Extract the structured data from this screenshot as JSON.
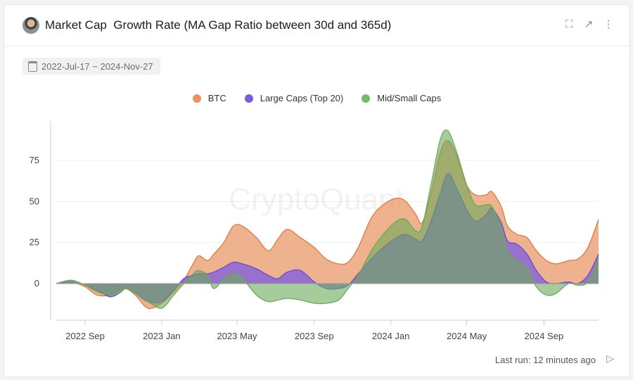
{
  "header": {
    "title": "Market Cap  Growth Rate (MA Gap Ratio between 30d and 365d)",
    "icons": [
      "fullscreen-icon",
      "external-link-icon",
      "more-vertical-icon"
    ]
  },
  "date_range": "2022-Jul-17 ~ 2024-Nov-27",
  "watermark": "CryptoQuant",
  "footer": {
    "last_run": "Last run: 12 minutes ago"
  },
  "colors": {
    "BTC": "#e8925f",
    "Large Caps (Top 20)": "#7b5be0",
    "Mid/Small Caps": "#79b866"
  },
  "chart_data": {
    "type": "area",
    "title": "",
    "xlabel": "",
    "ylabel": "",
    "ylim": [
      -20,
      100
    ],
    "yticks": [
      0,
      25,
      50,
      75
    ],
    "xticks": [
      {
        "date": "2022-09-01",
        "label": "2022 Sep"
      },
      {
        "date": "2023-01-01",
        "label": "2023 Jan"
      },
      {
        "date": "2023-05-01",
        "label": "2023 May"
      },
      {
        "date": "2023-09-01",
        "label": "2023 Sep"
      },
      {
        "date": "2024-01-01",
        "label": "2024 Jan"
      },
      {
        "date": "2024-05-01",
        "label": "2024 May"
      },
      {
        "date": "2024-09-01",
        "label": "2024 Sep"
      }
    ],
    "xlim": [
      "2022-07-17",
      "2024-11-27"
    ],
    "grid": true,
    "legend": "top-center",
    "x": [
      "2022-07-17",
      "2022-08-10",
      "2022-09-01",
      "2022-09-20",
      "2022-10-10",
      "2022-10-25",
      "2022-11-05",
      "2022-11-20",
      "2022-12-10",
      "2023-01-01",
      "2023-01-20",
      "2023-02-05",
      "2023-02-20",
      "2023-03-01",
      "2023-03-15",
      "2023-03-25",
      "2023-04-10",
      "2023-04-25",
      "2023-05-10",
      "2023-06-01",
      "2023-06-20",
      "2023-07-05",
      "2023-07-20",
      "2023-08-10",
      "2023-09-01",
      "2023-09-20",
      "2023-10-10",
      "2023-10-25",
      "2023-11-10",
      "2023-12-01",
      "2023-12-20",
      "2024-01-10",
      "2024-01-25",
      "2024-02-10",
      "2024-02-20",
      "2024-03-05",
      "2024-03-20",
      "2024-04-01",
      "2024-04-15",
      "2024-05-01",
      "2024-05-15",
      "2024-06-01",
      "2024-06-10",
      "2024-06-25",
      "2024-07-05",
      "2024-07-20",
      "2024-08-05",
      "2024-08-20",
      "2024-09-05",
      "2024-09-20",
      "2024-10-10",
      "2024-10-25",
      "2024-11-10",
      "2024-11-27"
    ],
    "series": [
      {
        "name": "BTC",
        "values": [
          0,
          1,
          -2,
          -7,
          -7,
          -4,
          -3,
          -7,
          -15,
          -12,
          -5,
          2,
          12,
          17,
          14,
          18,
          25,
          35,
          35,
          28,
          20,
          27,
          33,
          28,
          22,
          15,
          12,
          13,
          22,
          40,
          48,
          52,
          50,
          42,
          37,
          55,
          80,
          87,
          78,
          60,
          54,
          54,
          56,
          47,
          35,
          30,
          28,
          20,
          14,
          12,
          14,
          15,
          22,
          39
        ]
      },
      {
        "name": "Large Caps (Top 20)",
        "values": [
          0,
          2,
          -1,
          -4,
          -8,
          -6,
          -3,
          -6,
          -11,
          -11,
          -4,
          3,
          5,
          6,
          6,
          7,
          10,
          13,
          12,
          9,
          5,
          3,
          7,
          8,
          1,
          -3,
          -3,
          -1,
          6,
          15,
          22,
          28,
          30,
          27,
          26,
          38,
          55,
          67,
          58,
          45,
          38,
          42,
          46,
          37,
          26,
          24,
          18,
          8,
          1,
          0,
          1,
          0,
          5,
          18
        ]
      },
      {
        "name": "Mid/Small Caps",
        "values": [
          0,
          2,
          -1,
          -5,
          -7,
          -6,
          -3,
          -6,
          -11,
          -15,
          -7,
          0,
          6,
          8,
          5,
          -3,
          3,
          6,
          3,
          -7,
          -11,
          -10,
          -9,
          -10,
          -12,
          -12,
          -10,
          -3,
          5,
          20,
          30,
          38,
          39,
          32,
          35,
          60,
          88,
          93,
          80,
          60,
          48,
          48,
          47,
          35,
          20,
          14,
          10,
          -2,
          -7,
          -6,
          0,
          -1,
          1,
          15
        ]
      }
    ]
  }
}
